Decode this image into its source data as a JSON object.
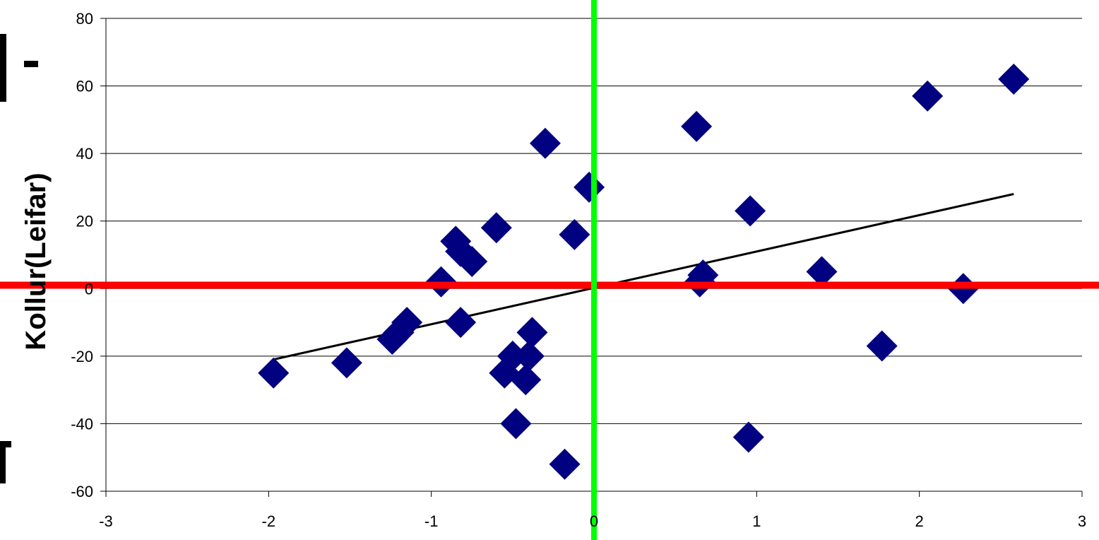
{
  "chart_data": {
    "type": "scatter",
    "title": "",
    "xlabel": "",
    "ylabel": "Kollur(Leifar)",
    "xlim": [
      -3,
      3
    ],
    "ylim": [
      -60,
      80
    ],
    "x_ticks": [
      -3,
      -2,
      -1,
      0,
      1,
      2,
      3
    ],
    "y_ticks": [
      80,
      60,
      40,
      20,
      0,
      -20,
      -40,
      -60
    ],
    "x_tick_labels": [
      "-3",
      "-2",
      "-1",
      "0",
      "1",
      "2",
      "3"
    ],
    "y_tick_labels": [
      "80",
      "60",
      "40",
      "20",
      "0",
      "-20",
      "-40",
      "-60"
    ],
    "grid": "horizontal",
    "legend": "none",
    "series": [
      {
        "marker": "diamond",
        "color": "#000080",
        "points": [
          {
            "x": -1.97,
            "y": -25
          },
          {
            "x": -1.52,
            "y": -22
          },
          {
            "x": -1.24,
            "y": -15
          },
          {
            "x": -1.2,
            "y": -13
          },
          {
            "x": -1.15,
            "y": -10
          },
          {
            "x": -0.94,
            "y": 2
          },
          {
            "x": -0.85,
            "y": 14
          },
          {
            "x": -0.82,
            "y": 11
          },
          {
            "x": -0.75,
            "y": 8
          },
          {
            "x": -0.82,
            "y": -10
          },
          {
            "x": -0.6,
            "y": 18
          },
          {
            "x": -0.5,
            "y": -20
          },
          {
            "x": -0.55,
            "y": -25
          },
          {
            "x": -0.4,
            "y": -20
          },
          {
            "x": -0.42,
            "y": -27
          },
          {
            "x": -0.38,
            "y": -13
          },
          {
            "x": -0.48,
            "y": -40
          },
          {
            "x": -0.3,
            "y": 43
          },
          {
            "x": -0.18,
            "y": -52
          },
          {
            "x": -0.12,
            "y": 16
          },
          {
            "x": -0.03,
            "y": 30
          },
          {
            "x": 0.63,
            "y": 48
          },
          {
            "x": 0.67,
            "y": 4
          },
          {
            "x": 0.65,
            "y": 2
          },
          {
            "x": 0.96,
            "y": 23
          },
          {
            "x": 0.95,
            "y": -44
          },
          {
            "x": 1.4,
            "y": 5
          },
          {
            "x": 1.77,
            "y": -17
          },
          {
            "x": 2.05,
            "y": 57
          },
          {
            "x": 2.27,
            "y": 0
          },
          {
            "x": 2.58,
            "y": 62
          }
        ]
      }
    ],
    "trendline": {
      "type": "linear",
      "color": "#000000",
      "from": {
        "x": -1.97,
        "y": -21
      },
      "to": {
        "x": 2.58,
        "y": 28
      }
    },
    "reference_lines": [
      {
        "orientation": "horizontal",
        "value": 1,
        "color": "#ff0000"
      },
      {
        "orientation": "vertical",
        "value": 0,
        "color": "#00ff00"
      }
    ]
  }
}
